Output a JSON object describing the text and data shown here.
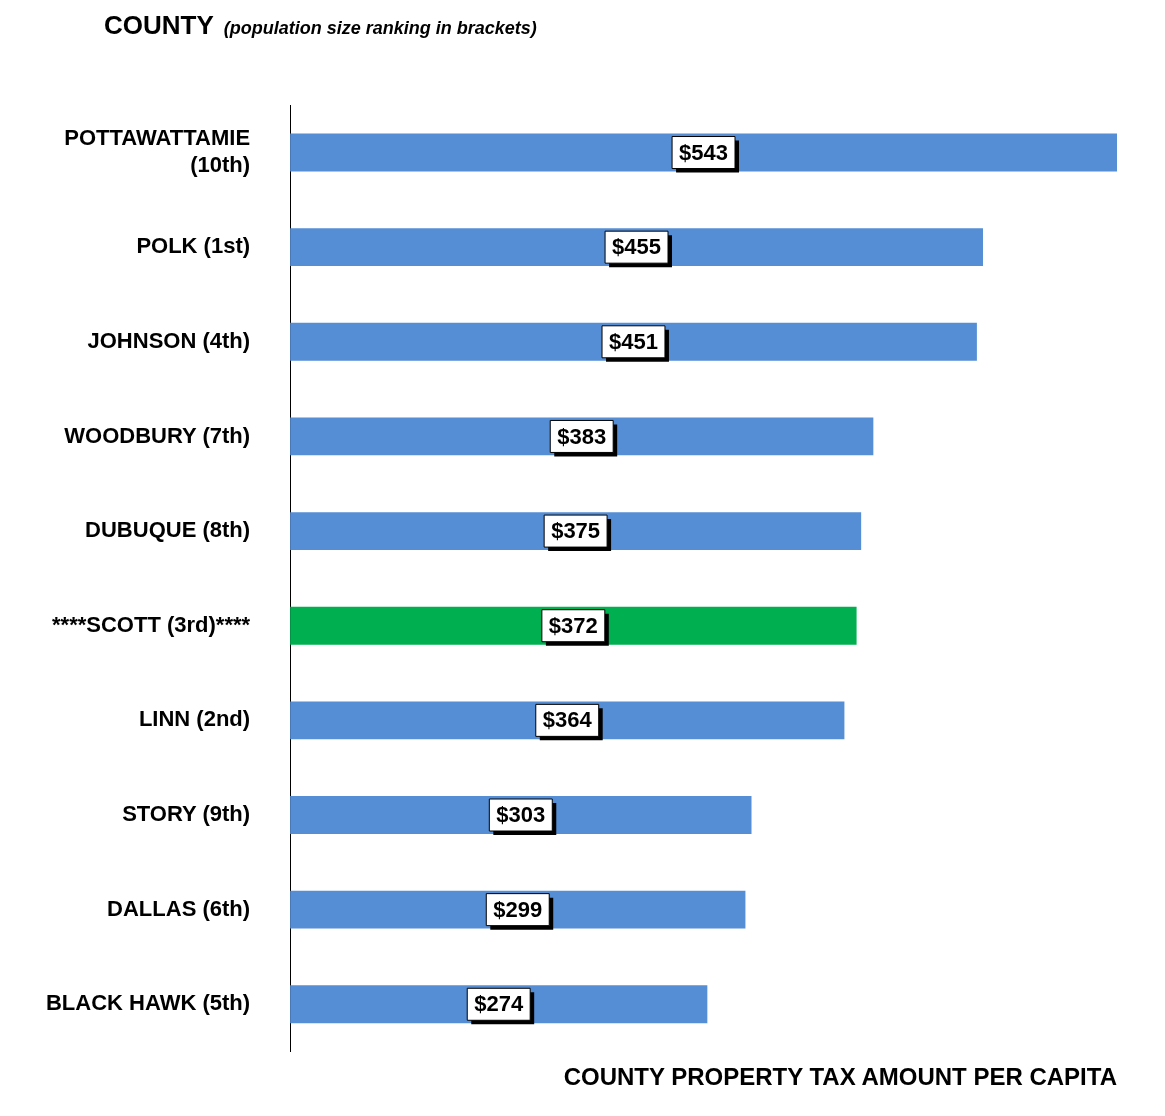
{
  "chart_data": {
    "type": "bar",
    "orientation": "horizontal",
    "title": "COUNTY",
    "subtitle": "(population size ranking in brackets)",
    "xlabel": "COUNTY PROPERTY TAX AMOUNT PER CAPITA",
    "categories": [
      "POTTAWATTAMIE (10th)",
      "POLK (1st)",
      "JOHNSON (4th)",
      "WOODBURY (7th)",
      "DUBUQUE (8th)",
      "****SCOTT (3rd)****",
      "LINN (2nd)",
      "STORY (9th)",
      "DALLAS (6th)",
      "BLACK HAWK (5th)"
    ],
    "values": [
      543,
      455,
      451,
      383,
      375,
      372,
      364,
      303,
      299,
      274
    ],
    "colors": [
      "#558ed5",
      "#558ed5",
      "#558ed5",
      "#558ed5",
      "#558ed5",
      "#00b050",
      "#558ed5",
      "#558ed5",
      "#558ed5",
      "#558ed5"
    ],
    "value_labels": [
      "$543",
      "$455",
      "$451",
      "$383",
      "$375",
      "$372",
      "$364",
      "$303",
      "$299",
      "$274"
    ],
    "grid": false,
    "legend": false
  }
}
